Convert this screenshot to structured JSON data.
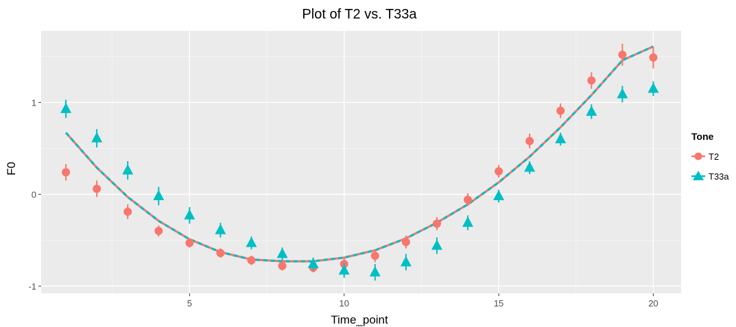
{
  "chart_data": {
    "type": "scatter",
    "title": "Plot of T2 vs. T33a",
    "xlabel": "Time_point",
    "ylabel": "F0",
    "xlim": [
      0.2,
      20.9
    ],
    "ylim": [
      -1.08,
      1.78
    ],
    "x_ticks": [
      5,
      10,
      15,
      20
    ],
    "y_ticks": [
      -1,
      0,
      1
    ],
    "x_tick_labels": [
      "5",
      "10",
      "15",
      "20"
    ],
    "y_tick_labels": [
      "-1",
      "0",
      "1"
    ],
    "grid": true,
    "legend": {
      "title": "Tone",
      "position": "right",
      "entries": [
        "T2",
        "T33a"
      ]
    },
    "colors": {
      "T2": "#f8766d",
      "T33a": "#00bfc4",
      "panel_background": "#ebebeb",
      "grid": "#ffffff"
    },
    "x": [
      1,
      2,
      3,
      4,
      5,
      6,
      7,
      8,
      9,
      10,
      11,
      12,
      13,
      14,
      15,
      16,
      17,
      18,
      19,
      20
    ],
    "series": [
      {
        "name": "T2",
        "marker": "circle",
        "values": [
          0.24,
          0.06,
          -0.19,
          -0.4,
          -0.53,
          -0.64,
          -0.72,
          -0.78,
          -0.8,
          -0.76,
          -0.67,
          -0.52,
          -0.32,
          -0.06,
          0.25,
          0.58,
          0.91,
          1.24,
          1.52,
          1.49
        ],
        "error": [
          0.09,
          0.09,
          0.08,
          0.06,
          0.05,
          0.05,
          0.05,
          0.05,
          0.05,
          0.06,
          0.07,
          0.07,
          0.07,
          0.07,
          0.07,
          0.08,
          0.08,
          0.09,
          0.12,
          0.12
        ]
      },
      {
        "name": "T33a",
        "marker": "triangle",
        "values": [
          0.93,
          0.61,
          0.26,
          -0.02,
          -0.23,
          -0.39,
          -0.53,
          -0.65,
          -0.76,
          -0.83,
          -0.85,
          -0.74,
          -0.56,
          -0.31,
          -0.02,
          0.29,
          0.6,
          0.9,
          1.09,
          1.15
        ],
        "error": [
          0.1,
          0.1,
          0.1,
          0.1,
          0.09,
          0.08,
          0.07,
          0.07,
          0.07,
          0.08,
          0.09,
          0.09,
          0.09,
          0.08,
          0.07,
          0.07,
          0.07,
          0.08,
          0.09,
          0.08
        ]
      }
    ],
    "fit": {
      "name": "quadratic fit (dashed, both tones)",
      "type": "quadratic",
      "x": [
        1,
        2,
        3,
        4,
        5,
        6,
        7,
        8,
        9,
        10,
        11,
        12,
        13,
        14,
        15,
        16,
        17,
        18,
        19,
        20
      ],
      "y": [
        0.67,
        0.29,
        -0.03,
        -0.29,
        -0.49,
        -0.63,
        -0.71,
        -0.73,
        -0.73,
        -0.69,
        -0.61,
        -0.48,
        -0.31,
        -0.11,
        0.13,
        0.41,
        0.73,
        1.08,
        1.46,
        1.61
      ]
    }
  }
}
